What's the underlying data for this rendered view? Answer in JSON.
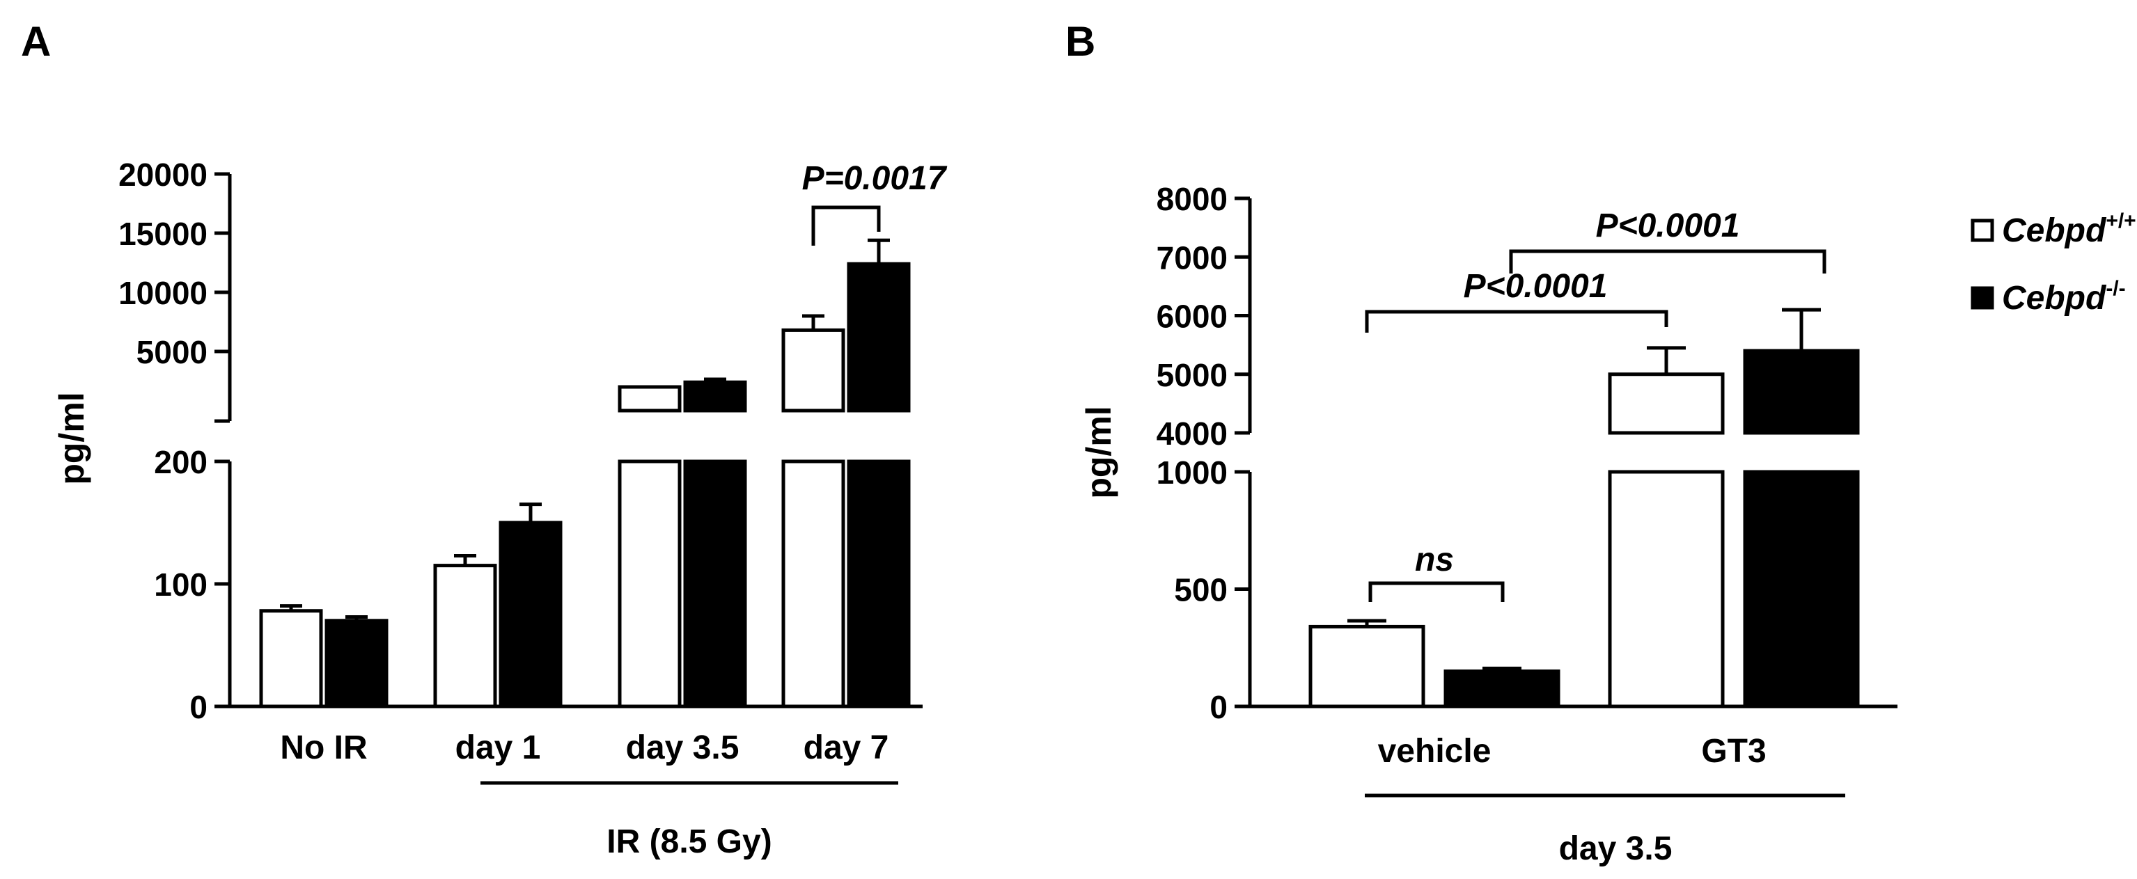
{
  "panels": {
    "a": {
      "label": "A"
    },
    "b": {
      "label": "B"
    }
  },
  "chart_data": [
    {
      "type": "bar",
      "panel": "A",
      "ylabel": "pg/ml",
      "broken_y_axis": true,
      "ylim_lower": [
        0,
        200
      ],
      "ylim_upper": [
        0,
        20000
      ],
      "y_ticks_lower": [
        "0",
        "100",
        "200"
      ],
      "y_ticks_upper": [
        "5000",
        "10000",
        "15000",
        "20000"
      ],
      "categories": [
        "No IR",
        "day 1",
        "day 3.5",
        "day 7"
      ],
      "group_label": "IR (8.5 Gy)",
      "group_span": [
        "day 1",
        "day 7"
      ],
      "series": [
        {
          "values": [
            78,
            115,
            2000,
            6800
          ],
          "errors": [
            4,
            8,
            0,
            1200
          ],
          "fill": "#ffffff"
        },
        {
          "values": [
            70,
            150,
            2400,
            12400
          ],
          "errors": [
            3,
            15,
            250,
            2000
          ],
          "fill": "#000000"
        }
      ],
      "annotations": [
        {
          "text": "P=0.0017",
          "between": [
            "day 7 open",
            "day 7 solid"
          ]
        }
      ]
    },
    {
      "type": "bar",
      "panel": "B",
      "ylabel": "pg/ml",
      "broken_y_axis": true,
      "ylim_lower": [
        0,
        1000
      ],
      "ylim_upper": [
        4000,
        8000
      ],
      "y_ticks_lower": [
        "0",
        "500",
        "1000"
      ],
      "y_ticks_upper": [
        "4000",
        "5000",
        "6000",
        "7000",
        "8000"
      ],
      "categories": [
        "vehicle",
        "GT3"
      ],
      "group_label": "day 3.5",
      "series": [
        {
          "name": "Cebpd+/+",
          "values": [
            340,
            5000
          ],
          "errors": [
            25,
            450
          ],
          "fill": "#ffffff"
        },
        {
          "name": "Cebpd-/-",
          "values": [
            150,
            5400
          ],
          "errors": [
            12,
            700
          ],
          "fill": "#000000"
        }
      ],
      "legend": {
        "position": "top-right",
        "items": [
          {
            "base": "Cebpd",
            "sup": "+/+"
          },
          {
            "base": "Cebpd",
            "sup": "-/-"
          }
        ]
      },
      "annotations": [
        {
          "text": "ns",
          "between": [
            "vehicle open",
            "vehicle solid"
          ]
        },
        {
          "text": "P<0.0001",
          "between": [
            "vehicle open",
            "GT3 open"
          ]
        },
        {
          "text": "P<0.0001",
          "between": [
            "vehicle solid",
            "GT3 solid"
          ]
        }
      ]
    }
  ]
}
